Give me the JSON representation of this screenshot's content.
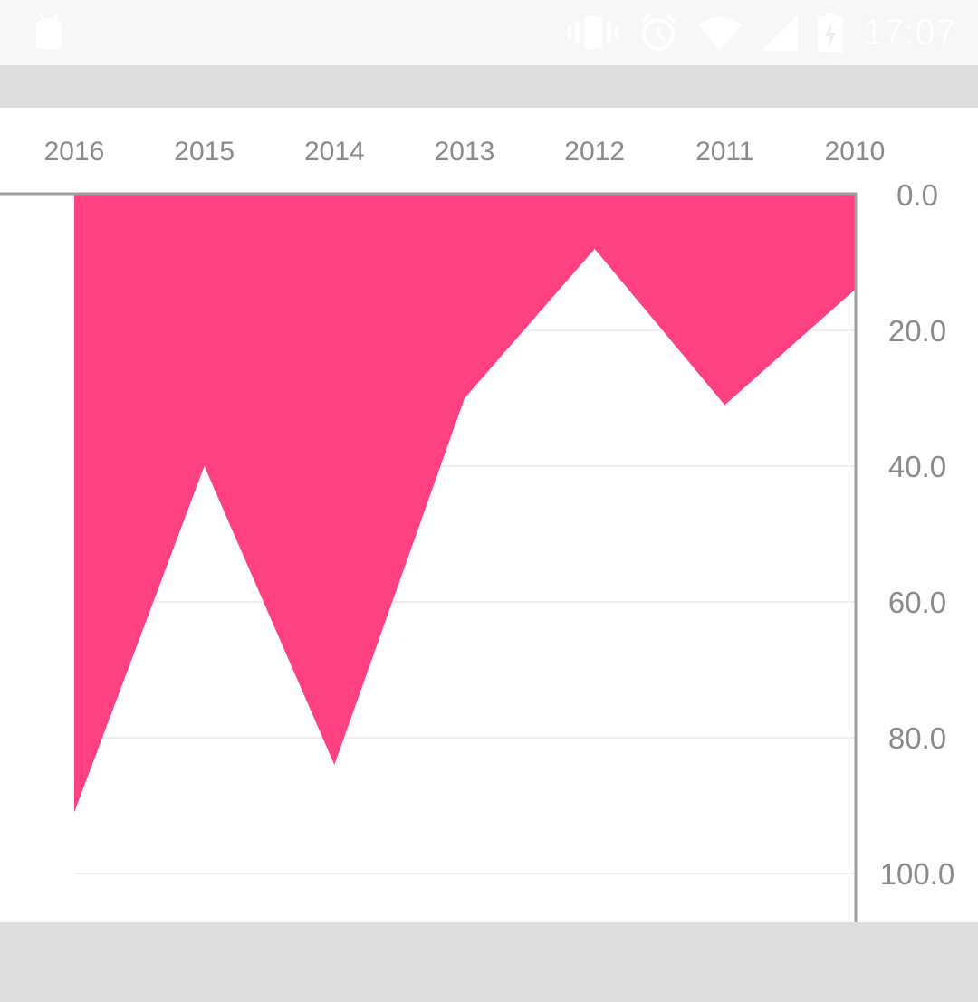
{
  "status_bar": {
    "time": "17:07",
    "icons": [
      "android-app-icon",
      "vibrate-icon",
      "alarm-icon",
      "wifi-icon",
      "signal-icon",
      "battery-charging-icon"
    ]
  },
  "chart_data": {
    "type": "area",
    "x": [
      "2016",
      "2015",
      "2014",
      "2013",
      "2012",
      "2011",
      "2010"
    ],
    "values": [
      91,
      40,
      84,
      30,
      8,
      31,
      14
    ],
    "ylim": [
      0,
      100
    ],
    "yticks": [
      "0.0",
      "20.0",
      "40.0",
      "60.0",
      "80.0",
      "100.0"
    ],
    "x_axis_position": "top",
    "y_axis_position": "right",
    "y_inverted": true,
    "grid": true,
    "colors": {
      "fill": "#ff4081",
      "grid": "#eeeeee",
      "axis": "#9e9e9e",
      "label": "#8a8a8a"
    }
  }
}
